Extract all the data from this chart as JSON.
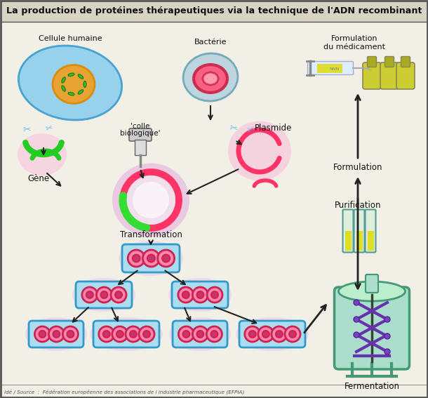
{
  "title": "La production de protéines thérapeutiques via la technique de l'ADN recombinant",
  "source": "idé / Source  :  Fédération européenne des associations de l industrie pharmaceutique (EFPIA)",
  "labels": {
    "cellule": "Cellule humaine",
    "bacterie": "Bactérie",
    "formulation_du1": "Formulation",
    "formulation_du2": "du médicament",
    "gene": "Gène",
    "colle1": "'colle",
    "colle2": "biologique'",
    "plasmide": "Plasmide",
    "transformation": "Transformation",
    "formulation": "Formulation",
    "purification": "Purification",
    "fermentation": "Fermentation"
  },
  "bg_color": "#f2f0e6",
  "title_bg": "#d4d0c0"
}
